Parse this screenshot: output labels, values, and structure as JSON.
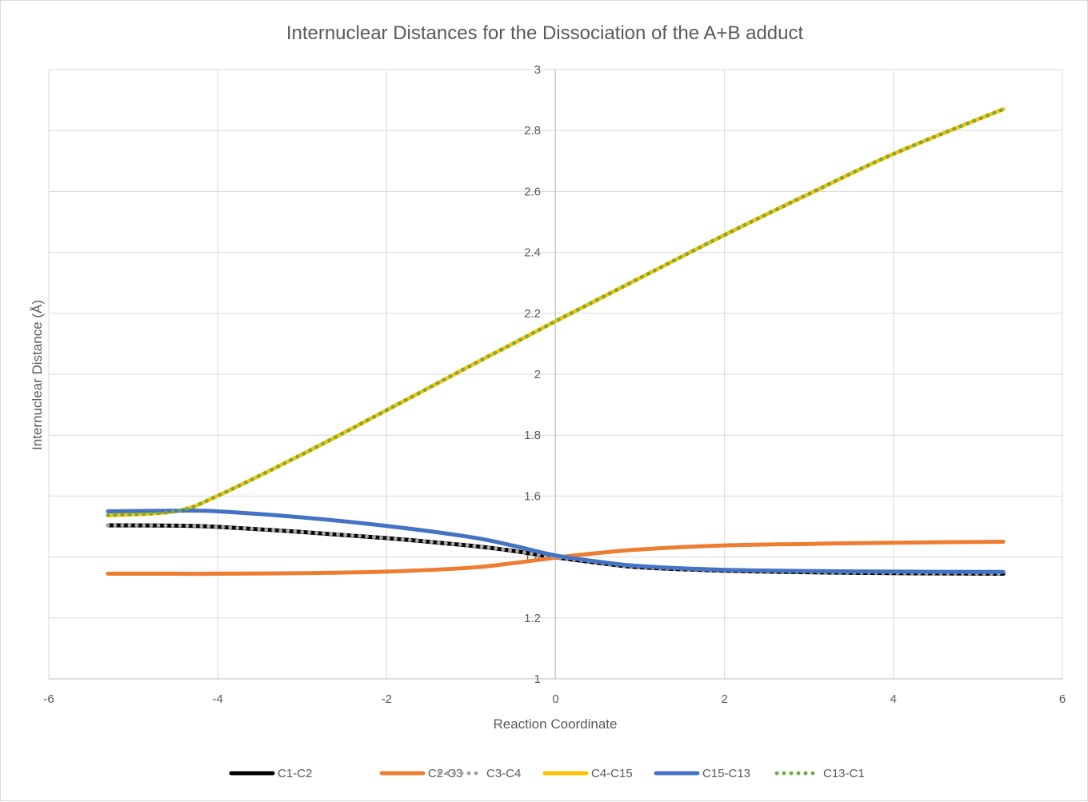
{
  "chart_data": {
    "type": "line",
    "title": "Internuclear Distances for the Dissociation of the A+B adduct",
    "xlabel": "Reaction Coordinate",
    "ylabel": "Internuclear Distance (Å)",
    "xlim": [
      -6,
      6
    ],
    "ylim": [
      1,
      3
    ],
    "x_ticks": [
      -6,
      -4,
      -2,
      0,
      2,
      4,
      6
    ],
    "y_ticks": [
      1,
      1.2,
      1.4,
      1.6,
      1.8,
      2,
      2.2,
      2.4,
      2.6,
      2.8,
      3
    ],
    "y_tick_labels": [
      "1",
      "1.2",
      "1.4",
      "1.6",
      "1.8",
      "2",
      "2.2",
      "2.4",
      "2.6",
      "2.8",
      "3"
    ],
    "x_tick_labels": [
      "-6",
      "-4",
      "-2",
      "0",
      "2",
      "4",
      "6"
    ],
    "grid": true,
    "legend_position": "bottom",
    "x": [
      -5.3,
      -4.5,
      -4.0,
      -3.0,
      -2.0,
      -1.0,
      -0.5,
      0.0,
      0.5,
      1.0,
      2.0,
      3.0,
      4.0,
      5.3
    ],
    "series": [
      {
        "name": "C1-C2",
        "color": "#000000",
        "style": "solid",
        "values": [
          1.504,
          1.503,
          1.499,
          1.482,
          1.462,
          1.437,
          1.42,
          1.399,
          1.381,
          1.366,
          1.355,
          1.35,
          1.347,
          1.345
        ]
      },
      {
        "name": "C2-C3",
        "color": "#ed7d31",
        "style": "solid",
        "values": [
          1.345,
          1.345,
          1.345,
          1.347,
          1.352,
          1.365,
          1.38,
          1.398,
          1.413,
          1.425,
          1.438,
          1.443,
          1.447,
          1.45
        ]
      },
      {
        "name": "C3-C4",
        "color": "#a5a5a5",
        "style": "dotted",
        "values": [
          1.504,
          1.503,
          1.499,
          1.482,
          1.462,
          1.437,
          1.42,
          1.399,
          1.381,
          1.366,
          1.355,
          1.35,
          1.347,
          1.345
        ]
      },
      {
        "name": "C4-C15",
        "color": "#ffc000",
        "style": "solid",
        "values": [
          1.537,
          1.55,
          1.601,
          1.737,
          1.882,
          2.029,
          2.101,
          2.174,
          2.245,
          2.316,
          2.457,
          2.592,
          2.723,
          2.87
        ]
      },
      {
        "name": "C15-C13",
        "color": "#4472c4",
        "style": "solid",
        "values": [
          1.55,
          1.552,
          1.55,
          1.53,
          1.502,
          1.465,
          1.437,
          1.405,
          1.385,
          1.37,
          1.358,
          1.354,
          1.352,
          1.351
        ]
      },
      {
        "name": "C13-C1",
        "color": "#70ad47",
        "style": "dotted",
        "values": [
          1.537,
          1.55,
          1.601,
          1.737,
          1.882,
          2.029,
          2.101,
          2.174,
          2.245,
          2.316,
          2.457,
          2.592,
          2.723,
          2.87
        ]
      }
    ]
  }
}
